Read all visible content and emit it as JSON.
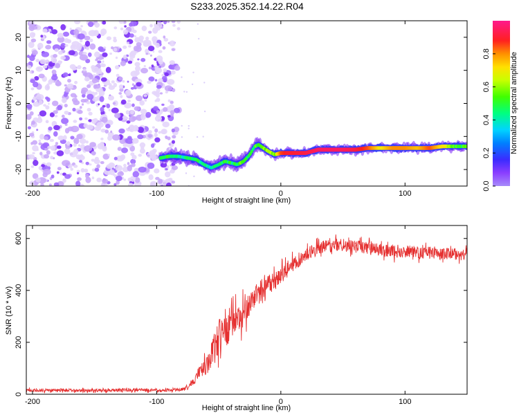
{
  "title": "S233.2025.352.14.22.R04",
  "colors": {
    "snr_line": "#e53030",
    "noise": "#8a3dff",
    "background": "#ffffff"
  },
  "chart_data": [
    {
      "type": "heatmap",
      "title": "S233.2025.352.14.22.R04",
      "xlabel": "Height of straight line (km)",
      "ylabel": "Frequency (Hz)",
      "xlim": [
        -205,
        150
      ],
      "ylim": [
        -25,
        25
      ],
      "x_ticks": [
        -200,
        -100,
        0,
        100
      ],
      "x_tick_labels": [
        "-200",
        "-100",
        "0",
        "100"
      ],
      "y_ticks": [
        20,
        10,
        0,
        -10,
        -20
      ],
      "y_tick_labels": [
        "20",
        "10",
        "0",
        "-10",
        "-20"
      ],
      "noise_region_x": [
        -205,
        -80
      ],
      "signal_trace": {
        "x": [
          -97,
          -90,
          -83,
          -75,
          -68,
          -62,
          -56,
          -50,
          -45,
          -40,
          -35,
          -30,
          -25,
          -21,
          -18,
          -14,
          -10,
          -5,
          0,
          5,
          10,
          20,
          30,
          40,
          50,
          60,
          70,
          80,
          90,
          100,
          110,
          120,
          130,
          140,
          150
        ],
        "y": [
          -16.5,
          -16,
          -16,
          -16.5,
          -17,
          -18.5,
          -19.5,
          -18.5,
          -17.5,
          -18,
          -18.5,
          -17.5,
          -15.5,
          -13,
          -12.5,
          -13.5,
          -14.5,
          -15.5,
          -15,
          -15,
          -15,
          -15,
          -14,
          -14,
          -14,
          -14,
          -13.5,
          -13.5,
          -13.5,
          -13.5,
          -13.5,
          -13.5,
          -13,
          -13,
          -13
        ],
        "amplitude": [
          0.45,
          0.5,
          0.4,
          0.45,
          0.45,
          0.4,
          0.4,
          0.45,
          0.5,
          0.45,
          0.5,
          0.55,
          0.5,
          0.5,
          0.55,
          0.55,
          0.6,
          0.6,
          0.85,
          0.9,
          0.9,
          0.92,
          0.95,
          0.95,
          0.95,
          0.92,
          0.85,
          0.7,
          0.8,
          0.8,
          0.75,
          0.85,
          0.7,
          0.55,
          0.5
        ]
      },
      "colorbar": {
        "label": "Normalized spectral amplitude",
        "range": [
          0,
          1
        ],
        "ticks": [
          0.0,
          0.2,
          0.4,
          0.6,
          0.8
        ],
        "tick_labels": [
          "0.0",
          "0.2",
          "0.4",
          "0.6",
          "0.8"
        ]
      }
    },
    {
      "type": "line",
      "xlabel": "Height of straight line (km)",
      "ylabel": "SNR (10 * v/v)",
      "xlim": [
        -205,
        150
      ],
      "ylim": [
        0,
        650
      ],
      "x_ticks": [
        -200,
        -100,
        0,
        100
      ],
      "x_tick_labels": [
        "-200",
        "-100",
        "0",
        "100"
      ],
      "y_ticks": [
        0,
        200,
        400,
        600
      ],
      "y_tick_labels": [
        "0",
        "200",
        "400",
        "600"
      ],
      "series": [
        {
          "name": "SNR",
          "x": [
            -205,
            -190,
            -175,
            -160,
            -145,
            -130,
            -115,
            -100,
            -90,
            -80,
            -75,
            -70,
            -65,
            -60,
            -55,
            -50,
            -45,
            -40,
            -35,
            -30,
            -25,
            -20,
            -15,
            -10,
            -5,
            0,
            5,
            10,
            15,
            20,
            25,
            30,
            35,
            40,
            45,
            50,
            55,
            60,
            65,
            70,
            75,
            80,
            85,
            90,
            95,
            100,
            105,
            110,
            115,
            120,
            125,
            130,
            135,
            140,
            145,
            150
          ],
          "values": [
            15,
            15,
            15,
            15,
            15,
            16,
            16,
            16,
            17,
            18,
            25,
            50,
            90,
            110,
            160,
            220,
            250,
            270,
            290,
            310,
            350,
            380,
            400,
            420,
            440,
            460,
            480,
            500,
            520,
            535,
            550,
            560,
            570,
            570,
            575,
            575,
            575,
            570,
            565,
            560,
            560,
            555,
            555,
            550,
            550,
            550,
            550,
            545,
            545,
            545,
            540,
            540,
            540,
            540,
            540,
            540
          ],
          "noise_amplitude": [
            10,
            10,
            10,
            10,
            10,
            10,
            10,
            10,
            10,
            10,
            15,
            25,
            40,
            60,
            80,
            110,
            130,
            110,
            90,
            90,
            80,
            80,
            70,
            70,
            65,
            60,
            55,
            50,
            50,
            45,
            45,
            40,
            40,
            40,
            40,
            40,
            40,
            40,
            40,
            40,
            40,
            40,
            40,
            40,
            40,
            40,
            40,
            40,
            40,
            40,
            40,
            40,
            40,
            40,
            40,
            40
          ]
        }
      ],
      "annotations": [
        {
          "x": -45,
          "y": 480,
          "text": ""
        }
      ]
    }
  ]
}
